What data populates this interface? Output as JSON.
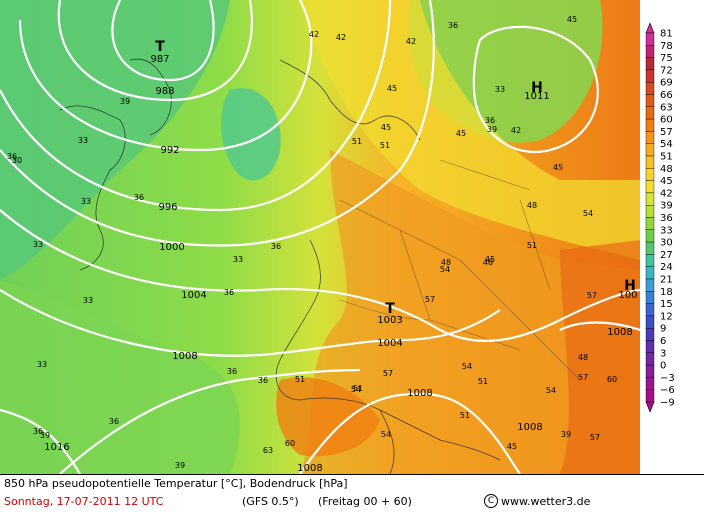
{
  "footer": {
    "title": "850 hPa pseudopotentielle Temperatur [°C], Bodendruck [hPa]",
    "date": "Sonntag, 17-07-2011 12 UTC",
    "model": "(GFS 0.5°)",
    "run": "(Freitag 00 + 60)",
    "copyright": "www.wetter3.de"
  },
  "colorbar": {
    "labels": [
      "81",
      "78",
      "75",
      "72",
      "69",
      "66",
      "63",
      "60",
      "57",
      "54",
      "51",
      "48",
      "45",
      "42",
      "39",
      "36",
      "33",
      "30",
      "27",
      "24",
      "21",
      "18",
      "15",
      "12",
      "9",
      "6",
      "3",
      "0",
      "−3",
      "−6",
      "−9"
    ],
    "colors": [
      "#d0309a",
      "#c0246e",
      "#b52a3a",
      "#c8352a",
      "#d64a20",
      "#e05a18",
      "#e96a10",
      "#f07e10",
      "#f5941a",
      "#f6ac22",
      "#f8c02a",
      "#f9d22e",
      "#f2e02e",
      "#d6e33a",
      "#b6df3a",
      "#92d83c",
      "#6ecf48",
      "#52c86a",
      "#3ec49e",
      "#38b8c6",
      "#3c9ed8",
      "#3a82d8",
      "#3a66d0",
      "#3e4ec4",
      "#4a3cb8",
      "#5e30ae",
      "#7228a4",
      "#86209a",
      "#981890",
      "#a8108a"
    ]
  },
  "pressure_centers": [
    {
      "type": "T",
      "value": "987"
    },
    {
      "type": "H",
      "value": "1011"
    },
    {
      "type": "T",
      "value": "1003"
    },
    {
      "type": "H",
      "value": "100"
    }
  ],
  "isobar_labels": [
    "988",
    "992",
    "996",
    "1000",
    "1004",
    "1008",
    "1016",
    "1004",
    "1008",
    "1008",
    "1008",
    "1008"
  ],
  "theta_labels": [
    "39",
    "33",
    "36",
    "30",
    "33",
    "36",
    "33",
    "33",
    "33",
    "36",
    "39",
    "36",
    "36",
    "33",
    "36",
    "36",
    "36",
    "39",
    "42",
    "42",
    "42",
    "45",
    "45",
    "36",
    "45",
    "33",
    "36",
    "39",
    "42",
    "45",
    "48",
    "51",
    "54",
    "57",
    "60",
    "57",
    "54",
    "51",
    "54",
    "57",
    "54",
    "51",
    "48",
    "45",
    "48",
    "51",
    "54",
    "57",
    "60",
    "63",
    "51",
    "45",
    "57",
    "54",
    "51",
    "51",
    "48",
    "45",
    "39"
  ]
}
